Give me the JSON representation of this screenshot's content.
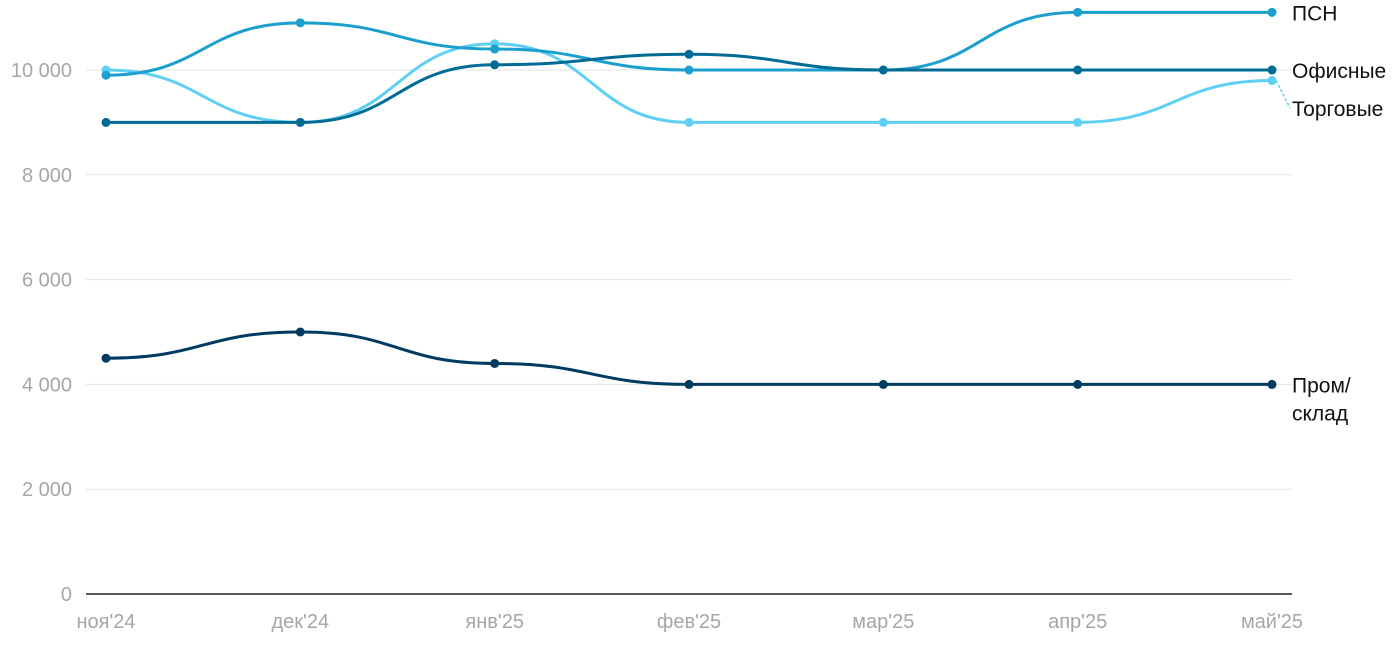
{
  "chart_data": {
    "type": "line",
    "categories": [
      "ноя'24",
      "дек'24",
      "янв'25",
      "фев'25",
      "мар'25",
      "апр'25",
      "май'25"
    ],
    "ylim": [
      0,
      11200
    ],
    "yticks": [
      0,
      2000,
      4000,
      6000,
      8000,
      10000
    ],
    "ytick_labels": [
      "0",
      "2 000",
      "4 000",
      "6 000",
      "8 000",
      "10 000"
    ],
    "grid": true,
    "legend": "inline labels at right end of lines",
    "series": [
      {
        "name": "Торговые",
        "label_lines": [
          "Торговые"
        ],
        "color": "#5fd0f3",
        "values": [
          10000,
          9000,
          10500,
          9000,
          9000,
          9000,
          9800
        ]
      },
      {
        "name": "ПСН",
        "label_lines": [
          "ПСН"
        ],
        "color": "#1a9fce",
        "values": [
          9900,
          10900,
          10400,
          10000,
          10000,
          11100,
          11100
        ]
      },
      {
        "name": "Офисные",
        "label_lines": [
          "Офисные"
        ],
        "color": "#006c95",
        "values": [
          9000,
          9000,
          10100,
          10300,
          10000,
          10000,
          10000
        ]
      },
      {
        "name": "Пром/склад",
        "label_lines": [
          "Пром/",
          "склад"
        ],
        "color": "#003b62",
        "values": [
          4500,
          5000,
          4400,
          4000,
          4000,
          4000,
          4000
        ]
      }
    ]
  }
}
